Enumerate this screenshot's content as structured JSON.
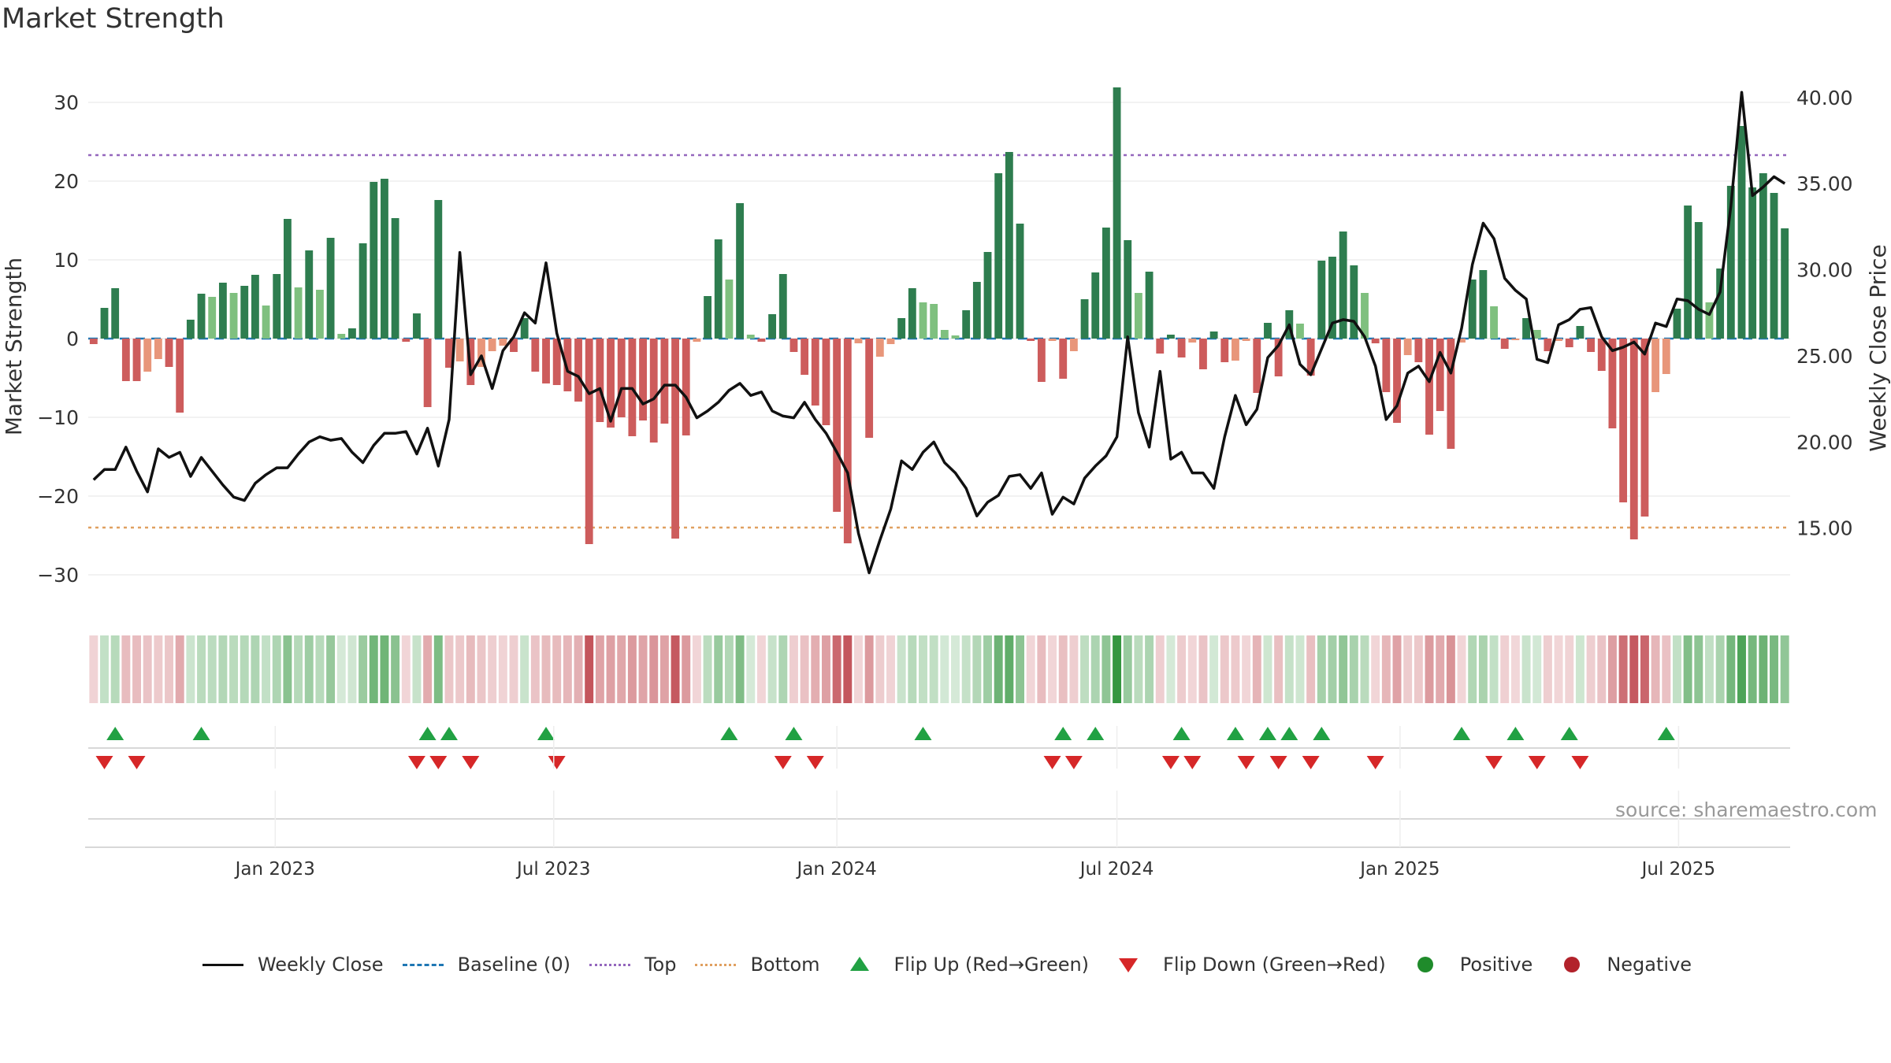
{
  "title": "Market Strength",
  "source": "source: sharemaestro.com",
  "legend": {
    "close": "Weekly Close",
    "baseline": "Baseline (0)",
    "top": "Top",
    "bottom": "Bottom",
    "flip_up": "Flip Up (Red→Green)",
    "flip_down": "Flip Down (Green→Red)",
    "positive": "Positive",
    "negative": "Negative"
  },
  "colors": {
    "close": "#111111",
    "baseline": "#1f77b4",
    "top": "#9467bd",
    "bottom": "#e0a060",
    "flip_up": "#21a143",
    "flip_down": "#d62728",
    "positive": "#1f8b2b",
    "negative": "#b2222b",
    "pos_strong": "#2e7d4f",
    "pos_light": "#7fc07f",
    "neg_strong": "#cd5c5c",
    "neg_light": "#e8967a"
  },
  "chart_data": {
    "type": "bar",
    "ylabel_left": "Market Strength",
    "ylabel_right": "Weekly Close Price",
    "ylim_left": [
      -35,
      35
    ],
    "ylim_right": [
      10,
      42
    ],
    "yticks_left": [
      30,
      20,
      10,
      0,
      -10,
      -20,
      -30
    ],
    "ytick_labels_left": [
      "30",
      "20",
      "10",
      "0",
      "−10",
      "−20",
      "−30"
    ],
    "yticks_right": [
      40,
      35,
      30,
      25,
      20,
      15
    ],
    "ytick_labels_right": [
      "40.00",
      "35.00",
      "30.00",
      "25.00",
      "20.00",
      "15.00"
    ],
    "top_level": 23.3,
    "bottom_level": -24,
    "x_start": "2022-09-05",
    "x_tick_labels": [
      "Jan 2023",
      "Jul 2023",
      "Jan 2024",
      "Jul 2024",
      "Jan 2025",
      "Jul 2025"
    ],
    "x_tick_dates": [
      "2023-01-01",
      "2023-07-01",
      "2024-01-01",
      "2024-07-01",
      "2025-01-01",
      "2025-07-01"
    ],
    "strength": [
      -0.7,
      3.9,
      6.4,
      -5.4,
      -5.4,
      -4.2,
      -2.6,
      -3.6,
      -9.4,
      2.4,
      5.7,
      5.3,
      7.1,
      5.8,
      6.7,
      8.1,
      4.2,
      8.2,
      15.2,
      6.5,
      11.2,
      6.2,
      12.8,
      0.6,
      1.3,
      12.1,
      19.9,
      20.3,
      15.3,
      -0.4,
      3.2,
      -8.7,
      17.6,
      -3.7,
      -2.9,
      -5.9,
      -3.6,
      -1.6,
      -0.9,
      -1.7,
      2.6,
      -4.2,
      -5.7,
      -5.9,
      -6.7,
      -8.0,
      -26.1,
      -10.6,
      -11.3,
      -10.0,
      -12.4,
      -10.4,
      -13.2,
      -10.8,
      -25.4,
      -12.3,
      -0.4,
      5.4,
      12.6,
      7.5,
      17.2,
      0.5,
      -0.4,
      3.1,
      8.2,
      -1.7,
      -4.6,
      -8.5,
      -11.0,
      -22.0,
      -26.0,
      -0.6,
      -12.6,
      -2.3,
      -0.7,
      2.6,
      6.4,
      4.6,
      4.4,
      1.1,
      0.4,
      3.6,
      7.2,
      11.0,
      21.0,
      23.7,
      14.6,
      -0.3,
      -5.5,
      -0.3,
      -5.1,
      -1.6,
      5.0,
      8.4,
      14.1,
      31.9,
      12.5,
      5.8,
      8.5,
      -1.9,
      0.5,
      -2.4,
      -0.5,
      -3.9,
      0.9,
      -3.0,
      -2.8,
      -0.3,
      -6.9,
      2.0,
      -4.8,
      3.6,
      1.9,
      -4.7,
      9.9,
      10.4,
      13.6,
      9.3,
      5.8,
      -0.6,
      -6.8,
      -10.7,
      -2.1,
      -3.0,
      -12.2,
      -9.2,
      -14.0,
      -0.5,
      7.5,
      8.7,
      4.1,
      -1.3,
      -0.2,
      2.6,
      1.1,
      -1.6,
      -0.3,
      -1.1,
      1.6,
      -1.7,
      -4.1,
      -11.4,
      -20.8,
      -25.5,
      -22.6,
      -6.8,
      -4.5,
      3.8,
      16.9,
      14.8,
      4.6,
      8.9,
      19.4,
      27.0,
      19.2,
      21.0,
      18.5,
      14.0
    ],
    "close": [
      17.8,
      18.4,
      18.4,
      19.7,
      18.3,
      17.1,
      19.6,
      19.1,
      19.4,
      18.0,
      19.1,
      18.3,
      17.5,
      16.8,
      16.6,
      17.6,
      18.1,
      18.5,
      18.5,
      19.3,
      20.0,
      20.3,
      20.1,
      20.2,
      19.4,
      18.8,
      19.8,
      20.5,
      20.5,
      20.6,
      19.3,
      20.8,
      18.6,
      21.3,
      31.0,
      23.9,
      25.0,
      23.1,
      25.3,
      26.1,
      27.5,
      26.9,
      30.4,
      26.3,
      24.1,
      23.8,
      22.8,
      23.1,
      21.2,
      23.1,
      23.1,
      22.2,
      22.5,
      23.3,
      23.3,
      22.6,
      21.4,
      21.8,
      22.3,
      23.0,
      23.4,
      22.7,
      22.9,
      21.8,
      21.5,
      21.4,
      22.3,
      21.3,
      20.5,
      19.4,
      18.2,
      14.7,
      12.4,
      14.3,
      16.1,
      18.9,
      18.4,
      19.4,
      20.0,
      18.8,
      18.2,
      17.3,
      15.7,
      16.5,
      16.9,
      18.0,
      18.1,
      17.3,
      18.2,
      15.8,
      16.8,
      16.4,
      17.9,
      18.6,
      19.2,
      20.3,
      26.1,
      21.7,
      19.7,
      24.1,
      19.0,
      19.4,
      18.2,
      18.2,
      17.3,
      20.3,
      22.7,
      21.0,
      21.9,
      24.9,
      25.6,
      26.8,
      24.5,
      23.9,
      25.4,
      26.9,
      27.1,
      27.0,
      26.1,
      24.4,
      21.3,
      22.1,
      24.0,
      24.4,
      23.5,
      25.2,
      24.0,
      26.6,
      30.3,
      32.7,
      31.8,
      29.5,
      28.8,
      28.3,
      24.8,
      24.6,
      26.8,
      27.1,
      27.7,
      27.8,
      26.1,
      25.3,
      25.5,
      25.8,
      25.1,
      26.9,
      26.7,
      28.3,
      28.2,
      27.7,
      27.4,
      28.7,
      33.7,
      40.3,
      34.3,
      34.8,
      35.4,
      35.0
    ],
    "flip_up_weeks": [
      2,
      10,
      31,
      33,
      42,
      59,
      65,
      77,
      90,
      93,
      101,
      106,
      109,
      111,
      114,
      127,
      132,
      137,
      146
    ],
    "flip_down_weeks": [
      1,
      4,
      30,
      32,
      35,
      43,
      64,
      67,
      89,
      91,
      100,
      102,
      107,
      110,
      113,
      119,
      130,
      134,
      138
    ]
  }
}
